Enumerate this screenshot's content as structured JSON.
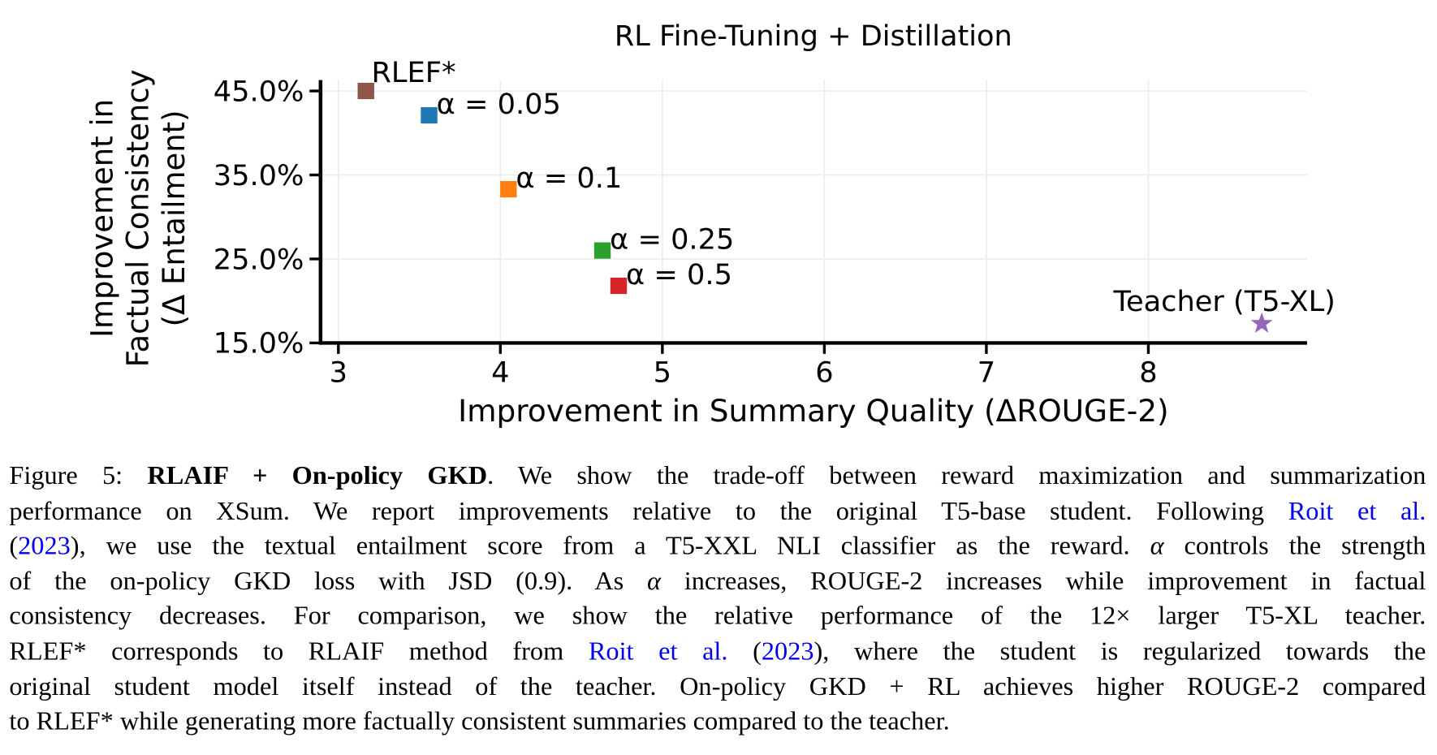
{
  "chart_data": {
    "type": "scatter",
    "title": "RL Fine-Tuning + Distillation",
    "xlabel": "Improvement in Summary Quality (ΔROUGE-2)",
    "ylabel_line1": "Improvement in",
    "ylabel_line2": "Factual Consistency",
    "ylabel_line3": "(Δ Entailment)",
    "xlim": [
      2.89,
      8.98
    ],
    "ylim": [
      15.0,
      46.3
    ],
    "xticks": [
      3,
      4,
      5,
      6,
      7,
      8
    ],
    "xtick_labels": [
      "3",
      "4",
      "5",
      "6",
      "7",
      "8"
    ],
    "yticks": [
      15,
      25,
      35,
      45
    ],
    "ytick_labels": [
      "15.0%",
      "25.0%",
      "35.0%",
      "45.0%"
    ],
    "grid": true,
    "points": [
      {
        "label": "RLEF*",
        "x": 3.17,
        "y": 45.0,
        "color": "#8c564b",
        "marker": "square",
        "label_pos": "above-right"
      },
      {
        "label": "α = 0.05",
        "x": 3.56,
        "y": 42.1,
        "color": "#1f77b4",
        "marker": "square",
        "label_pos": "right"
      },
      {
        "label": "α = 0.1",
        "x": 4.05,
        "y": 33.3,
        "color": "#ff7f0e",
        "marker": "square",
        "label_pos": "right"
      },
      {
        "label": "α = 0.25",
        "x": 4.63,
        "y": 26.0,
        "color": "#2ca02c",
        "marker": "square",
        "label_pos": "right"
      },
      {
        "label": "α = 0.5",
        "x": 4.73,
        "y": 21.8,
        "color": "#d62728",
        "marker": "square",
        "label_pos": "right"
      },
      {
        "label": "Teacher (T5-XL)",
        "x": 8.7,
        "y": 17.3,
        "color": "#9467bd",
        "marker": "star",
        "label_pos": "above-left"
      }
    ]
  },
  "caption": {
    "lines": [
      [
        {
          "t": "Figure 5: "
        },
        {
          "t": "RLAIF + On-policy GKD",
          "s": "b"
        },
        {
          "t": ". We show the trade-off between reward maximization and summarization"
        }
      ],
      [
        {
          "t": "performance on XSum. We report improvements relative to the original T5-base student. Following "
        },
        {
          "t": "Roit et al.",
          "s": "lnk"
        }
      ],
      [
        {
          "t": "("
        },
        {
          "t": "2023",
          "s": "lnk"
        },
        {
          "t": "), we use the textual entailment score from a T5-XXL NLI classifier as the reward. "
        },
        {
          "t": "α",
          "s": "it"
        },
        {
          "t": " controls the strength"
        }
      ],
      [
        {
          "t": "of the on-policy GKD loss with JSD (0.9). As "
        },
        {
          "t": "α",
          "s": "it"
        },
        {
          "t": " increases, ROUGE-2 increases while improvement in factual"
        }
      ],
      [
        {
          "t": "consistency decreases. For comparison, we show the relative performance of the 12× larger T5-XL teacher."
        }
      ],
      [
        {
          "t": "RLEF* corresponds to RLAIF method from "
        },
        {
          "t": "Roit et al.",
          "s": "lnk"
        },
        {
          "t": " ("
        },
        {
          "t": "2023",
          "s": "lnk"
        },
        {
          "t": "), where the student is regularized towards the"
        }
      ],
      [
        {
          "t": "original student model itself instead of the teacher. On-policy GKD + RL achieves higher ROUGE-2 compared"
        }
      ],
      [
        {
          "t": "to RLEF* while generating more factually consistent summaries compared to the teacher."
        }
      ]
    ]
  }
}
